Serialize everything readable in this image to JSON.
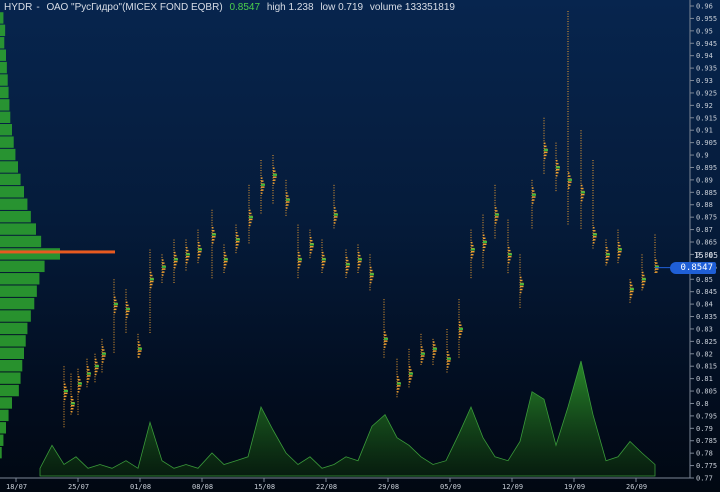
{
  "header": {
    "ticker": "HYDR",
    "sep": "-",
    "name": "ОАО \"РусГидро\"(MICEX FOND EQBR)",
    "last": "0.8547",
    "high": "high 1.238",
    "low": "low 0.719",
    "volume": "volume 133351819"
  },
  "price_badge": "0.8547",
  "time_label": "15:05",
  "colors": {
    "profile": "#2fa82f",
    "dots": "#f0a030",
    "poc": "#e85a20",
    "volume_fill": "#1f7a1f",
    "badge": "#1f5fd6"
  },
  "chart_data": {
    "type": "bar",
    "ylim": [
      0.77,
      0.96
    ],
    "yticks": [
      "0.96",
      "0.955",
      "0.95",
      "0.945",
      "0.94",
      "0.935",
      "0.93",
      "0.925",
      "0.92",
      "0.915",
      "0.91",
      "0.905",
      "0.9",
      "0.895",
      "0.89",
      "0.885",
      "0.88",
      "0.875",
      "0.87",
      "0.865",
      "0.86",
      "0.855",
      "0.85",
      "0.845",
      "0.84",
      "0.835",
      "0.83",
      "0.825",
      "0.82",
      "0.815",
      "0.81",
      "0.805",
      "0.8",
      "0.795",
      "0.79",
      "0.785",
      "0.78",
      "0.775",
      "0.77"
    ],
    "xlabels": [
      "18/07",
      "25/07",
      "01/08",
      "08/08",
      "15/08",
      "22/08",
      "29/08",
      "05/09",
      "12/09",
      "19/09",
      "26/09"
    ],
    "last_price": 0.8547,
    "poc_price": 0.861,
    "volume_profile": [
      {
        "p": 0.955,
        "v": 4
      },
      {
        "p": 0.95,
        "v": 6
      },
      {
        "p": 0.945,
        "v": 5
      },
      {
        "p": 0.94,
        "v": 7
      },
      {
        "p": 0.935,
        "v": 8
      },
      {
        "p": 0.93,
        "v": 9
      },
      {
        "p": 0.925,
        "v": 10
      },
      {
        "p": 0.92,
        "v": 11
      },
      {
        "p": 0.915,
        "v": 12
      },
      {
        "p": 0.91,
        "v": 14
      },
      {
        "p": 0.905,
        "v": 16
      },
      {
        "p": 0.9,
        "v": 18
      },
      {
        "p": 0.895,
        "v": 21
      },
      {
        "p": 0.89,
        "v": 24
      },
      {
        "p": 0.885,
        "v": 28
      },
      {
        "p": 0.88,
        "v": 32
      },
      {
        "p": 0.875,
        "v": 36
      },
      {
        "p": 0.87,
        "v": 42
      },
      {
        "p": 0.865,
        "v": 48
      },
      {
        "p": 0.86,
        "v": 70
      },
      {
        "p": 0.855,
        "v": 52
      },
      {
        "p": 0.85,
        "v": 46
      },
      {
        "p": 0.845,
        "v": 43
      },
      {
        "p": 0.84,
        "v": 40
      },
      {
        "p": 0.835,
        "v": 36
      },
      {
        "p": 0.83,
        "v": 32
      },
      {
        "p": 0.825,
        "v": 30
      },
      {
        "p": 0.82,
        "v": 28
      },
      {
        "p": 0.815,
        "v": 26
      },
      {
        "p": 0.81,
        "v": 24
      },
      {
        "p": 0.805,
        "v": 22
      },
      {
        "p": 0.8,
        "v": 14
      },
      {
        "p": 0.795,
        "v": 10
      },
      {
        "p": 0.79,
        "v": 7
      },
      {
        "p": 0.785,
        "v": 4
      },
      {
        "p": 0.78,
        "v": 2
      }
    ],
    "sessions": [
      {
        "x": 64,
        "lo": 0.79,
        "hi": 0.815,
        "c": 0.805
      },
      {
        "x": 71,
        "lo": 0.795,
        "hi": 0.812,
        "c": 0.8
      },
      {
        "x": 78,
        "lo": 0.795,
        "hi": 0.814,
        "c": 0.808
      },
      {
        "x": 87,
        "lo": 0.806,
        "hi": 0.818,
        "c": 0.812
      },
      {
        "x": 95,
        "lo": 0.808,
        "hi": 0.82,
        "c": 0.815
      },
      {
        "x": 102,
        "lo": 0.812,
        "hi": 0.826,
        "c": 0.82
      },
      {
        "x": 114,
        "lo": 0.82,
        "hi": 0.85,
        "c": 0.84
      },
      {
        "x": 126,
        "lo": 0.828,
        "hi": 0.846,
        "c": 0.838
      },
      {
        "x": 138,
        "lo": 0.818,
        "hi": 0.828,
        "c": 0.822
      },
      {
        "x": 150,
        "lo": 0.828,
        "hi": 0.862,
        "c": 0.85
      },
      {
        "x": 162,
        "lo": 0.848,
        "hi": 0.86,
        "c": 0.855
      },
      {
        "x": 174,
        "lo": 0.848,
        "hi": 0.866,
        "c": 0.858
      },
      {
        "x": 186,
        "lo": 0.853,
        "hi": 0.866,
        "c": 0.86
      },
      {
        "x": 198,
        "lo": 0.856,
        "hi": 0.87,
        "c": 0.862
      },
      {
        "x": 212,
        "lo": 0.85,
        "hi": 0.878,
        "c": 0.868
      },
      {
        "x": 224,
        "lo": 0.852,
        "hi": 0.864,
        "c": 0.858
      },
      {
        "x": 236,
        "lo": 0.86,
        "hi": 0.872,
        "c": 0.866
      },
      {
        "x": 249,
        "lo": 0.864,
        "hi": 0.888,
        "c": 0.875
      },
      {
        "x": 261,
        "lo": 0.876,
        "hi": 0.898,
        "c": 0.888
      },
      {
        "x": 273,
        "lo": 0.88,
        "hi": 0.9,
        "c": 0.892
      },
      {
        "x": 286,
        "lo": 0.875,
        "hi": 0.89,
        "c": 0.882
      },
      {
        "x": 298,
        "lo": 0.85,
        "hi": 0.872,
        "c": 0.858
      },
      {
        "x": 310,
        "lo": 0.858,
        "hi": 0.87,
        "c": 0.864
      },
      {
        "x": 322,
        "lo": 0.852,
        "hi": 0.866,
        "c": 0.858
      },
      {
        "x": 334,
        "lo": 0.87,
        "hi": 0.888,
        "c": 0.876
      },
      {
        "x": 346,
        "lo": 0.85,
        "hi": 0.862,
        "c": 0.856
      },
      {
        "x": 358,
        "lo": 0.852,
        "hi": 0.864,
        "c": 0.858
      },
      {
        "x": 370,
        "lo": 0.845,
        "hi": 0.86,
        "c": 0.852
      },
      {
        "x": 384,
        "lo": 0.818,
        "hi": 0.842,
        "c": 0.826
      },
      {
        "x": 397,
        "lo": 0.802,
        "hi": 0.818,
        "c": 0.808
      },
      {
        "x": 409,
        "lo": 0.806,
        "hi": 0.822,
        "c": 0.812
      },
      {
        "x": 421,
        "lo": 0.815,
        "hi": 0.828,
        "c": 0.82
      },
      {
        "x": 433,
        "lo": 0.815,
        "hi": 0.826,
        "c": 0.822
      },
      {
        "x": 447,
        "lo": 0.812,
        "hi": 0.83,
        "c": 0.818
      },
      {
        "x": 459,
        "lo": 0.818,
        "hi": 0.842,
        "c": 0.83
      },
      {
        "x": 471,
        "lo": 0.85,
        "hi": 0.87,
        "c": 0.862
      },
      {
        "x": 483,
        "lo": 0.854,
        "hi": 0.876,
        "c": 0.865
      },
      {
        "x": 495,
        "lo": 0.866,
        "hi": 0.888,
        "c": 0.876
      },
      {
        "x": 508,
        "lo": 0.852,
        "hi": 0.874,
        "c": 0.86
      },
      {
        "x": 520,
        "lo": 0.838,
        "hi": 0.86,
        "c": 0.848
      },
      {
        "x": 532,
        "lo": 0.87,
        "hi": 0.89,
        "c": 0.884
      },
      {
        "x": 544,
        "lo": 0.892,
        "hi": 0.915,
        "c": 0.902
      },
      {
        "x": 556,
        "lo": 0.885,
        "hi": 0.905,
        "c": 0.895
      },
      {
        "x": 568,
        "lo": 0.872,
        "hi": 0.958,
        "c": 0.89
      },
      {
        "x": 581,
        "lo": 0.87,
        "hi": 0.91,
        "c": 0.885
      },
      {
        "x": 593,
        "lo": 0.862,
        "hi": 0.898,
        "c": 0.868
      },
      {
        "x": 606,
        "lo": 0.855,
        "hi": 0.866,
        "c": 0.86
      },
      {
        "x": 618,
        "lo": 0.856,
        "hi": 0.87,
        "c": 0.862
      },
      {
        "x": 630,
        "lo": 0.84,
        "hi": 0.85,
        "c": 0.846
      },
      {
        "x": 642,
        "lo": 0.845,
        "hi": 0.86,
        "c": 0.85
      },
      {
        "x": 655,
        "lo": 0.852,
        "hi": 0.868,
        "c": 0.855
      }
    ],
    "volume_series": [
      {
        "x": 40,
        "v": 2
      },
      {
        "x": 52,
        "v": 8
      },
      {
        "x": 64,
        "v": 3
      },
      {
        "x": 76,
        "v": 5
      },
      {
        "x": 88,
        "v": 2
      },
      {
        "x": 100,
        "v": 3
      },
      {
        "x": 112,
        "v": 2
      },
      {
        "x": 126,
        "v": 4
      },
      {
        "x": 138,
        "v": 2
      },
      {
        "x": 150,
        "v": 14
      },
      {
        "x": 162,
        "v": 4
      },
      {
        "x": 174,
        "v": 2
      },
      {
        "x": 186,
        "v": 3
      },
      {
        "x": 198,
        "v": 2
      },
      {
        "x": 212,
        "v": 6
      },
      {
        "x": 224,
        "v": 3
      },
      {
        "x": 236,
        "v": 4
      },
      {
        "x": 248,
        "v": 5
      },
      {
        "x": 261,
        "v": 18
      },
      {
        "x": 273,
        "v": 12
      },
      {
        "x": 286,
        "v": 6
      },
      {
        "x": 298,
        "v": 3
      },
      {
        "x": 310,
        "v": 5
      },
      {
        "x": 322,
        "v": 2
      },
      {
        "x": 334,
        "v": 3
      },
      {
        "x": 346,
        "v": 5
      },
      {
        "x": 358,
        "v": 4
      },
      {
        "x": 372,
        "v": 13
      },
      {
        "x": 385,
        "v": 16
      },
      {
        "x": 397,
        "v": 10
      },
      {
        "x": 409,
        "v": 8
      },
      {
        "x": 421,
        "v": 5
      },
      {
        "x": 433,
        "v": 3
      },
      {
        "x": 446,
        "v": 4
      },
      {
        "x": 459,
        "v": 11
      },
      {
        "x": 471,
        "v": 18
      },
      {
        "x": 483,
        "v": 10
      },
      {
        "x": 495,
        "v": 5
      },
      {
        "x": 508,
        "v": 4
      },
      {
        "x": 520,
        "v": 9
      },
      {
        "x": 532,
        "v": 22
      },
      {
        "x": 544,
        "v": 20
      },
      {
        "x": 556,
        "v": 8
      },
      {
        "x": 568,
        "v": 18
      },
      {
        "x": 581,
        "v": 30
      },
      {
        "x": 593,
        "v": 16
      },
      {
        "x": 606,
        "v": 4
      },
      {
        "x": 618,
        "v": 5
      },
      {
        "x": 630,
        "v": 9
      },
      {
        "x": 642,
        "v": 6
      },
      {
        "x": 655,
        "v": 3
      }
    ]
  }
}
